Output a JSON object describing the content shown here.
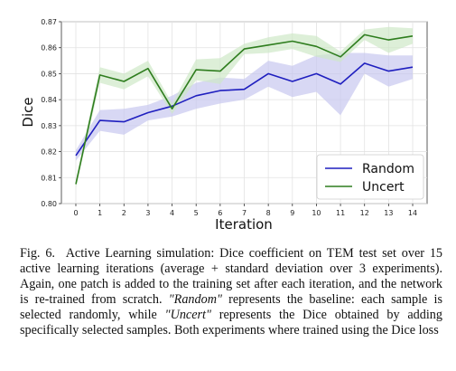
{
  "chart_data": {
    "type": "line",
    "x": [
      0,
      1,
      2,
      3,
      4,
      5,
      6,
      7,
      8,
      9,
      10,
      11,
      12,
      13,
      14
    ],
    "xlabel": "Iteration",
    "ylabel": "Dice",
    "xlim": [
      -0.6,
      14.6
    ],
    "ylim": [
      0.8,
      0.87
    ],
    "yticks": [
      "0.80",
      "0.81",
      "0.82",
      "0.83",
      "0.84",
      "0.85",
      "0.86",
      "0.87"
    ],
    "grid": true,
    "legend_position": "lower-right",
    "series": [
      {
        "name": "Random",
        "color": "#1f1fbf",
        "band_color": "#c8c8f0",
        "values": [
          0.8185,
          0.832,
          0.8315,
          0.835,
          0.8375,
          0.8415,
          0.8435,
          0.844,
          0.85,
          0.847,
          0.85,
          0.846,
          0.854,
          0.851,
          0.8525
        ],
        "std": [
          0.002,
          0.004,
          0.005,
          0.003,
          0.004,
          0.005,
          0.005,
          0.004,
          0.005,
          0.006,
          0.007,
          0.012,
          0.004,
          0.006,
          0.0045
        ]
      },
      {
        "name": "Uncert",
        "color": "#2e7d1e",
        "band_color": "#cfe8c8",
        "values": [
          0.8075,
          0.8495,
          0.847,
          0.852,
          0.8365,
          0.8515,
          0.851,
          0.8595,
          0.861,
          0.8625,
          0.8605,
          0.8565,
          0.865,
          0.863,
          0.8645
        ],
        "std": [
          0.0015,
          0.003,
          0.003,
          0.003,
          0.002,
          0.004,
          0.005,
          0.002,
          0.003,
          0.003,
          0.004,
          0.002,
          0.002,
          0.005,
          0.003
        ]
      }
    ]
  },
  "caption": {
    "label": "Fig. 6.",
    "text_1": "Active Learning simulation: Dice coefficient on TEM test set over 15 active learning iterations (average + standard deviation over 3 experiments). Again, one patch is added to the training set after each iteration, and the network is re-trained from scratch. ",
    "random_term": "\"Random\"",
    "text_2": " represents the baseline: each sample is selected randomly, while ",
    "uncert_term": "\"Uncert\"",
    "text_3": " represents the Dice obtained by adding specifically selected samples. Both experiments where trained using the Dice loss"
  }
}
